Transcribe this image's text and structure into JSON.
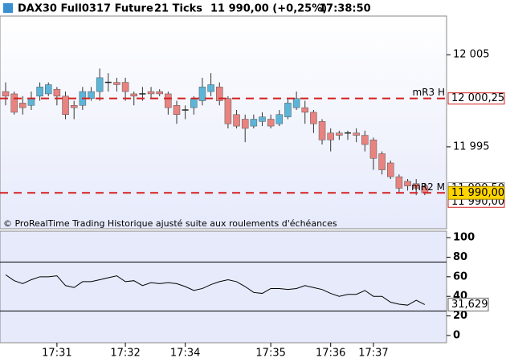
{
  "chart_data": [
    {
      "type": "candlestick",
      "title": "DAX30 Full0317 Future",
      "interval": "21 Ticks",
      "price_change": "11 990,00 (+0,25%)",
      "time": "17:38:50",
      "note": "© ProRealTime Trading  Historique ajusté suite aux roulements d'échéances",
      "up_color": "#5bb5d8",
      "down_color": "#e8837f",
      "open": [
        12001,
        12000.75,
        11999.75,
        11999.5,
        12000.5,
        12000.75,
        12001.25,
        12000.5,
        11999.5,
        11999.5,
        12000.25,
        12001,
        12002,
        12002,
        12002,
        12000.75,
        12000.75,
        12001,
        12001,
        12000.75,
        11999.5,
        11999,
        11999.25,
        12000,
        12001,
        12001.5,
        12000.25,
        11998.5,
        11998,
        11997.25,
        11997.75,
        11998,
        11997.5,
        11998.25,
        11999.25,
        11999.25,
        11998.75,
        11997.75,
        11996.5,
        11996.5,
        11996.5,
        11996.5,
        11996.25,
        11995.75,
        11994.25,
        11993.25,
        11991.75,
        11991.25,
        11991,
        11990.75
      ],
      "high": [
        12002,
        12001,
        12000.5,
        12001,
        12002,
        12002,
        12001.5,
        12001,
        12000,
        12001.5,
        12001.5,
        12003.5,
        12003,
        12002.5,
        12002.5,
        12001,
        12001.5,
        12001.5,
        12001.25,
        12001,
        12000,
        11999.5,
        12000.5,
        12002.5,
        12003,
        12002,
        12000.5,
        11999,
        11998.5,
        11998.5,
        11998.75,
        11998.5,
        11999,
        12000.25,
        12001,
        12000,
        11999,
        11998,
        11997,
        11996.75,
        11996.75,
        11997,
        11996.75,
        11996,
        11994.5,
        11993.5,
        11992,
        11991.5,
        11991.5,
        11991
      ],
      "low": [
        11999.5,
        11998.5,
        11998.5,
        11999,
        12000,
        12000.5,
        11999.5,
        11998,
        11998,
        11999,
        12000,
        12000,
        12001,
        12001,
        12000,
        11999.5,
        12000,
        12000.25,
        12000.5,
        11998.5,
        11997.5,
        11998,
        11998.5,
        11999.5,
        12000.5,
        11999.5,
        11997,
        11997,
        11995.5,
        11997,
        11997.25,
        11997,
        11997.25,
        11998,
        11999,
        11997.5,
        11996.5,
        11995.25,
        11994.5,
        11995.75,
        11995.75,
        11995.5,
        11994.5,
        11992.5,
        11992,
        11991.5,
        11990,
        11990.25,
        11989.75,
        11989.75
      ],
      "close": [
        12000.5,
        11998.75,
        11999.25,
        12000.25,
        12001.5,
        12001.75,
        12000.5,
        11998.5,
        11999.25,
        12001,
        12001,
        12002.5,
        12002,
        12001.75,
        12001,
        12000.5,
        12000.75,
        12000.75,
        12000.75,
        11999.25,
        11998.5,
        11999,
        12000.25,
        12001.5,
        12001.75,
        12000,
        11997.5,
        11997.25,
        11997,
        11998,
        11998.25,
        11997.25,
        11998.5,
        11999.75,
        12000.25,
        11998.75,
        11997.5,
        11995.75,
        11995.75,
        11996.25,
        11996.5,
        11996.25,
        11995.25,
        11993.75,
        11992.5,
        11991.75,
        11990.5,
        11990.75,
        11990.5,
        11990
      ],
      "last_label": "11 990,00",
      "previous_price": {
        "value": 11990.5,
        "label": "11 990,50"
      },
      "levels": [
        {
          "name": "mR3 H",
          "value": 12000.25,
          "label": "12 000,25",
          "color": "#d42020"
        },
        {
          "name": "mR2 M",
          "value": 11990,
          "label": "11 990,00",
          "color": "#d42020"
        }
      ],
      "ylim": [
        11986.1,
        12009.2
      ],
      "yticks": [
        {
          "value": 12005,
          "label": "12 005"
        },
        {
          "value": 11995,
          "label": "11 995"
        }
      ]
    },
    {
      "type": "line",
      "color": "#000000",
      "values": [
        62,
        56,
        53,
        57,
        60,
        60,
        61,
        51,
        49,
        55,
        55,
        57,
        59,
        61,
        55,
        56,
        51,
        54,
        53,
        54,
        53,
        50,
        46,
        48,
        52,
        55,
        57,
        55,
        50,
        44,
        43,
        48,
        48,
        47,
        48,
        51,
        49,
        47,
        43,
        40,
        42,
        42,
        46,
        40,
        40,
        34,
        32,
        31,
        36,
        31.629
      ],
      "value_labels": [
        null,
        null,
        null,
        null,
        null,
        null,
        null,
        null,
        null,
        null,
        null,
        null,
        null,
        null,
        null,
        null,
        null,
        null,
        null,
        null,
        null,
        null,
        null,
        null,
        null,
        null,
        null,
        null,
        null,
        null,
        null,
        null,
        null,
        null,
        null,
        null,
        null,
        null,
        null,
        null,
        null,
        null,
        null,
        null,
        null,
        null,
        null,
        null,
        null,
        "31,629"
      ],
      "levels": [
        75,
        25
      ],
      "ylim": [
        -7.4,
        106.6
      ],
      "yticks": [
        100,
        80,
        60,
        40,
        20,
        0
      ],
      "xticks": [
        {
          "value": 6,
          "label": "17:31"
        },
        {
          "value": 14,
          "label": "17:32"
        },
        {
          "value": 21,
          "label": "17:34"
        },
        {
          "value": 31,
          "label": "17:35"
        },
        {
          "value": 38,
          "label": "17:36"
        },
        {
          "value": 43,
          "label": "17:37"
        }
      ]
    }
  ]
}
